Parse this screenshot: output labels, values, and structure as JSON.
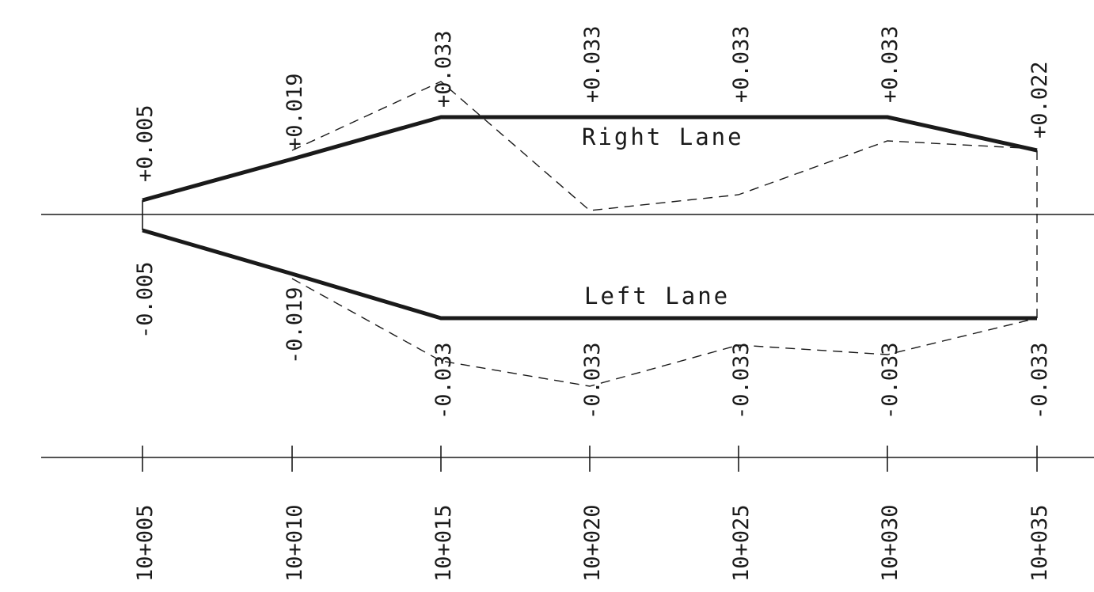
{
  "diagram": {
    "stations": [
      "10+005",
      "10+010",
      "10+015",
      "10+020",
      "10+025",
      "10+030",
      "10+035"
    ],
    "design_right": [
      "+0.005",
      "+0.019",
      "+0.033",
      "+0.033",
      "+0.033",
      "+0.033",
      "+0.022"
    ],
    "design_left": [
      "-0.005",
      "-0.019",
      "-0.033",
      "-0.033",
      "-0.033",
      "-0.033",
      "-0.033"
    ],
    "right_lane_label": "Right Lane",
    "left_lane_label": "Left Lane",
    "colors": {
      "line": "#1a1a1a",
      "background": "#ffffff"
    }
  }
}
